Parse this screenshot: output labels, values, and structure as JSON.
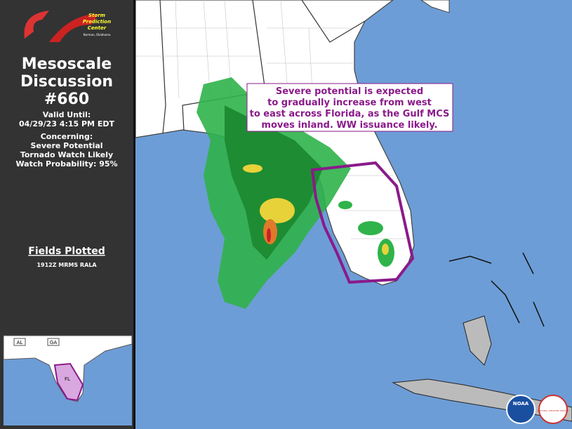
{
  "sidebar": {
    "logo": {
      "line1": "Storm",
      "line2": "Prediction",
      "line3": "Center",
      "line4": "Norman, Oklahoma"
    },
    "title_lines": [
      "Mesoscale",
      "Discussion",
      "#660"
    ],
    "valid_label": "Valid Until:",
    "valid_time": "04/29/23 4:15 PM EDT",
    "concerning_label": "Concerning:",
    "concerning_lines": [
      "Severe Potential",
      "Tornado Watch Likely",
      "Watch Probability: 95%"
    ],
    "fields_title": "Fields Plotted",
    "fields_value": "1912Z MRMS RALA"
  },
  "inset": {
    "labels": [
      "AL",
      "GA",
      "FL"
    ]
  },
  "map": {
    "annotation_lines": [
      "Severe potential is expected",
      "to gradually increase from west",
      "to east across Florida, as the Gulf MCS",
      "moves inland.  WW issuance likely."
    ],
    "logos": {
      "noaa": "NOAA",
      "nws": "NATIONAL WEATHER SERVICE"
    }
  }
}
